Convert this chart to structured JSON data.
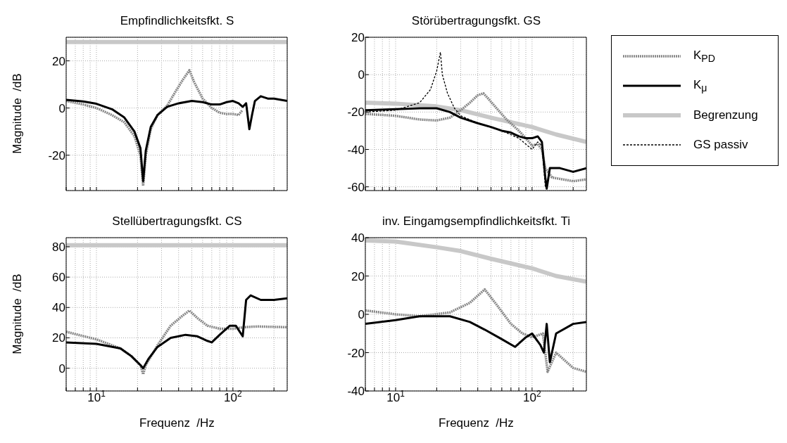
{
  "chart_data": [
    {
      "type": "line",
      "title": "Empfindlichkeitsfkt. S",
      "ylabel": "Magnitude  /dB",
      "log": "x",
      "grid": true,
      "tick_labels": "y",
      "xlim": [
        6,
        250
      ],
      "xticks": [
        {
          "value": 6,
          "label": null
        },
        {
          "value": 7,
          "label": null
        },
        {
          "value": 8,
          "label": null
        },
        {
          "value": 9,
          "label": null
        },
        {
          "value": 10,
          "label": null
        },
        {
          "value": 20,
          "label": null
        },
        {
          "value": 30,
          "label": null
        },
        {
          "value": 40,
          "label": null
        },
        {
          "value": 50,
          "label": null
        },
        {
          "value": 60,
          "label": null
        },
        {
          "value": 70,
          "label": null
        },
        {
          "value": 80,
          "label": null
        },
        {
          "value": 90,
          "label": null
        },
        {
          "value": 100,
          "label": null
        },
        {
          "value": 200,
          "label": null
        }
      ],
      "ylim": [
        -35,
        30
      ],
      "yticks": [
        -20,
        0,
        20
      ],
      "series": [
        {
          "color": "#888888",
          "line_style": "dotted",
          "x": [
            6,
            8,
            10,
            13,
            16,
            19,
            21,
            22,
            23,
            25,
            28,
            33,
            38,
            43,
            48,
            52,
            60,
            70,
            80,
            90,
            100,
            110,
            117
          ],
          "values": [
            3,
            1.5,
            0,
            -3,
            -6,
            -12,
            -20,
            -33,
            -20,
            -9,
            -3,
            1,
            7,
            12,
            16,
            11,
            4,
            0,
            -2,
            -2.5,
            -2.5,
            -3,
            -1
          ]
        },
        {
          "color": "#000000",
          "line_style": "solid",
          "x": [
            6,
            8,
            10,
            13,
            16,
            19,
            21,
            22,
            23,
            25,
            28,
            33,
            40,
            50,
            60,
            70,
            80,
            90,
            100,
            110,
            118,
            125,
            132,
            138,
            145,
            160,
            180,
            200,
            250
          ],
          "values": [
            3.5,
            2.8,
            1.8,
            -0.5,
            -4,
            -10,
            -17,
            -31,
            -18,
            -8,
            -3,
            0.5,
            2,
            3,
            2.5,
            1.5,
            1.5,
            2.5,
            3,
            2,
            0.5,
            2,
            -9,
            -3,
            3,
            5,
            4,
            4,
            3
          ]
        },
        {
          "color": "#c8c8c8",
          "line_style": "solid",
          "x": [
            6,
            250
          ],
          "values": [
            28,
            28
          ]
        }
      ]
    },
    {
      "type": "line",
      "title": "Störübertragungsfkt. GS",
      "log": "x",
      "grid": true,
      "tick_labels": "y",
      "legend": "right",
      "xlim": [
        6,
        250
      ],
      "xticks": [
        {
          "value": 6,
          "label": null
        },
        {
          "value": 7,
          "label": null
        },
        {
          "value": 8,
          "label": null
        },
        {
          "value": 9,
          "label": null
        },
        {
          "value": 10,
          "label": null
        },
        {
          "value": 20,
          "label": null
        },
        {
          "value": 30,
          "label": null
        },
        {
          "value": 40,
          "label": null
        },
        {
          "value": 50,
          "label": null
        },
        {
          "value": 60,
          "label": null
        },
        {
          "value": 70,
          "label": null
        },
        {
          "value": 80,
          "label": null
        },
        {
          "value": 90,
          "label": null
        },
        {
          "value": 100,
          "label": null
        },
        {
          "value": 200,
          "label": null
        }
      ],
      "ylim": [
        -62,
        20
      ],
      "yticks": [
        -60,
        -40,
        -20,
        0,
        20
      ],
      "series": [
        {
          "name": "K$_{PD}$",
          "color": "#888888",
          "line_style": "dotted",
          "x": [
            6,
            10,
            15,
            20,
            25,
            30,
            35,
            40,
            44,
            48,
            55,
            65,
            80,
            95,
            100,
            110,
            118,
            125,
            140,
            200,
            250
          ],
          "values": [
            -21,
            -22,
            -24,
            -24.5,
            -23,
            -19,
            -15,
            -11,
            -10,
            -13,
            -18,
            -24,
            -30,
            -36,
            -38,
            -37,
            -40,
            -50,
            -55,
            -57,
            -56
          ]
        },
        {
          "name": "K$_{μ}$",
          "color": "#000000",
          "line_style": "solid",
          "x": [
            6,
            10,
            15,
            20,
            25,
            30,
            40,
            50,
            60,
            70,
            80,
            90,
            100,
            110,
            118,
            125,
            128,
            135,
            160,
            200,
            250
          ],
          "values": [
            -19,
            -18.5,
            -18,
            -18,
            -20,
            -23,
            -26,
            -28,
            -30,
            -31,
            -33,
            -34,
            -34,
            -33,
            -36,
            -55,
            -61,
            -50,
            -50,
            -52,
            -50
          ]
        },
        {
          "name": "Begrenzung",
          "color": "#c8c8c8",
          "line_style": "solid",
          "x": [
            6,
            10,
            20,
            30,
            50,
            100,
            150,
            250
          ],
          "values": [
            -15,
            -15.5,
            -17,
            -19,
            -23,
            -28,
            -32,
            -36
          ]
        },
        {
          "name": "GS passiv",
          "color": "#000000",
          "line_style": "dashed",
          "x": [
            6,
            10,
            15,
            18,
            20,
            21.3,
            22,
            24,
            27,
            30,
            40,
            60,
            80,
            100,
            110,
            118,
            125
          ],
          "values": [
            -20,
            -19,
            -15,
            -8,
            2,
            12,
            0,
            -10,
            -18,
            -22,
            -26,
            -30,
            -34,
            -40,
            -36,
            -38,
            -60
          ]
        }
      ]
    },
    {
      "type": "line",
      "title": "Stellübertragungsfkt. CS",
      "ylabel": "Magnitude  /dB",
      "xlabel": "Frequenz  /Hz",
      "log": "x",
      "grid": true,
      "xlim": [
        6,
        250
      ],
      "xticks": [
        {
          "value": 6,
          "label": null
        },
        {
          "value": 7,
          "label": null
        },
        {
          "value": 8,
          "label": null
        },
        {
          "value": 9,
          "label": null
        },
        {
          "value": 10,
          "label": "10$^{1}$"
        },
        {
          "value": 20,
          "label": null
        },
        {
          "value": 30,
          "label": null
        },
        {
          "value": 40,
          "label": null
        },
        {
          "value": 50,
          "label": null
        },
        {
          "value": 60,
          "label": null
        },
        {
          "value": 70,
          "label": null
        },
        {
          "value": 80,
          "label": null
        },
        {
          "value": 90,
          "label": null
        },
        {
          "value": 100,
          "label": "10$^{2}$"
        },
        {
          "value": 200,
          "label": null
        }
      ],
      "ylim": [
        -15,
        86
      ],
      "yticks": [
        0,
        20,
        40,
        60,
        80
      ],
      "series": [
        {
          "color": "#888888",
          "line_style": "dotted",
          "x": [
            6,
            10,
            15,
            18,
            21,
            22,
            23,
            28,
            35,
            42,
            48,
            55,
            65,
            80,
            100,
            120,
            150,
            250
          ],
          "values": [
            24,
            19,
            13,
            8,
            2,
            -4,
            2,
            15,
            28,
            34,
            38,
            33,
            28,
            26,
            26,
            27,
            27.5,
            27
          ]
        },
        {
          "color": "#000000",
          "line_style": "solid",
          "x": [
            6,
            10,
            15,
            18,
            21,
            22,
            24,
            28,
            35,
            45,
            55,
            65,
            70,
            80,
            95,
            105,
            118,
            125,
            135,
            160,
            200,
            250
          ],
          "values": [
            17,
            16,
            13,
            8,
            2,
            0,
            6,
            14,
            20,
            22,
            21,
            18,
            17,
            22,
            28,
            28,
            21,
            45,
            48,
            45,
            45,
            46
          ]
        },
        {
          "color": "#c8c8c8",
          "line_style": "solid",
          "x": [
            6,
            250
          ],
          "values": [
            81,
            81
          ]
        }
      ]
    },
    {
      "type": "line",
      "title": "inv. Eingamgsempfindlichkeitsfkt. Ti",
      "xlabel": "Frequenz  /Hz",
      "log": "x",
      "grid": true,
      "xlim": [
        6,
        250
      ],
      "xticks": [
        {
          "value": 6,
          "label": null
        },
        {
          "value": 7,
          "label": null
        },
        {
          "value": 8,
          "label": null
        },
        {
          "value": 9,
          "label": null
        },
        {
          "value": 10,
          "label": "10$^{1}$"
        },
        {
          "value": 20,
          "label": null
        },
        {
          "value": 30,
          "label": null
        },
        {
          "value": 40,
          "label": null
        },
        {
          "value": 50,
          "label": null
        },
        {
          "value": 60,
          "label": null
        },
        {
          "value": 70,
          "label": null
        },
        {
          "value": 80,
          "label": null
        },
        {
          "value": 90,
          "label": null
        },
        {
          "value": 100,
          "label": "10$^{2}$"
        },
        {
          "value": 200,
          "label": null
        }
      ],
      "ylim": [
        -40,
        40
      ],
      "yticks": [
        -40,
        -20,
        0,
        20,
        40
      ],
      "series": [
        {
          "color": "#888888",
          "line_style": "dotted",
          "x": [
            6,
            10,
            15,
            25,
            35,
            45,
            55,
            70,
            85,
            100,
            120,
            130,
            150,
            200,
            250
          ],
          "values": [
            2,
            0,
            -1,
            1,
            6,
            13,
            5,
            -5,
            -10,
            -12,
            -10,
            -30,
            -20,
            -28,
            -30
          ]
        },
        {
          "color": "#000000",
          "line_style": "solid",
          "x": [
            6,
            10,
            15,
            25,
            35,
            45,
            60,
            75,
            90,
            100,
            115,
            122,
            128,
            135,
            150,
            200,
            250
          ],
          "values": [
            -5,
            -3,
            -1,
            -1,
            -4,
            -8,
            -13,
            -17,
            -12,
            -10,
            -16,
            -20,
            -5,
            -25,
            -10,
            -5,
            -4
          ]
        },
        {
          "color": "#c8c8c8",
          "line_style": "solid",
          "x": [
            6,
            10,
            20,
            30,
            50,
            100,
            150,
            250
          ],
          "values": [
            38.5,
            38,
            35,
            33,
            29,
            24,
            20,
            17
          ]
        }
      ]
    }
  ]
}
